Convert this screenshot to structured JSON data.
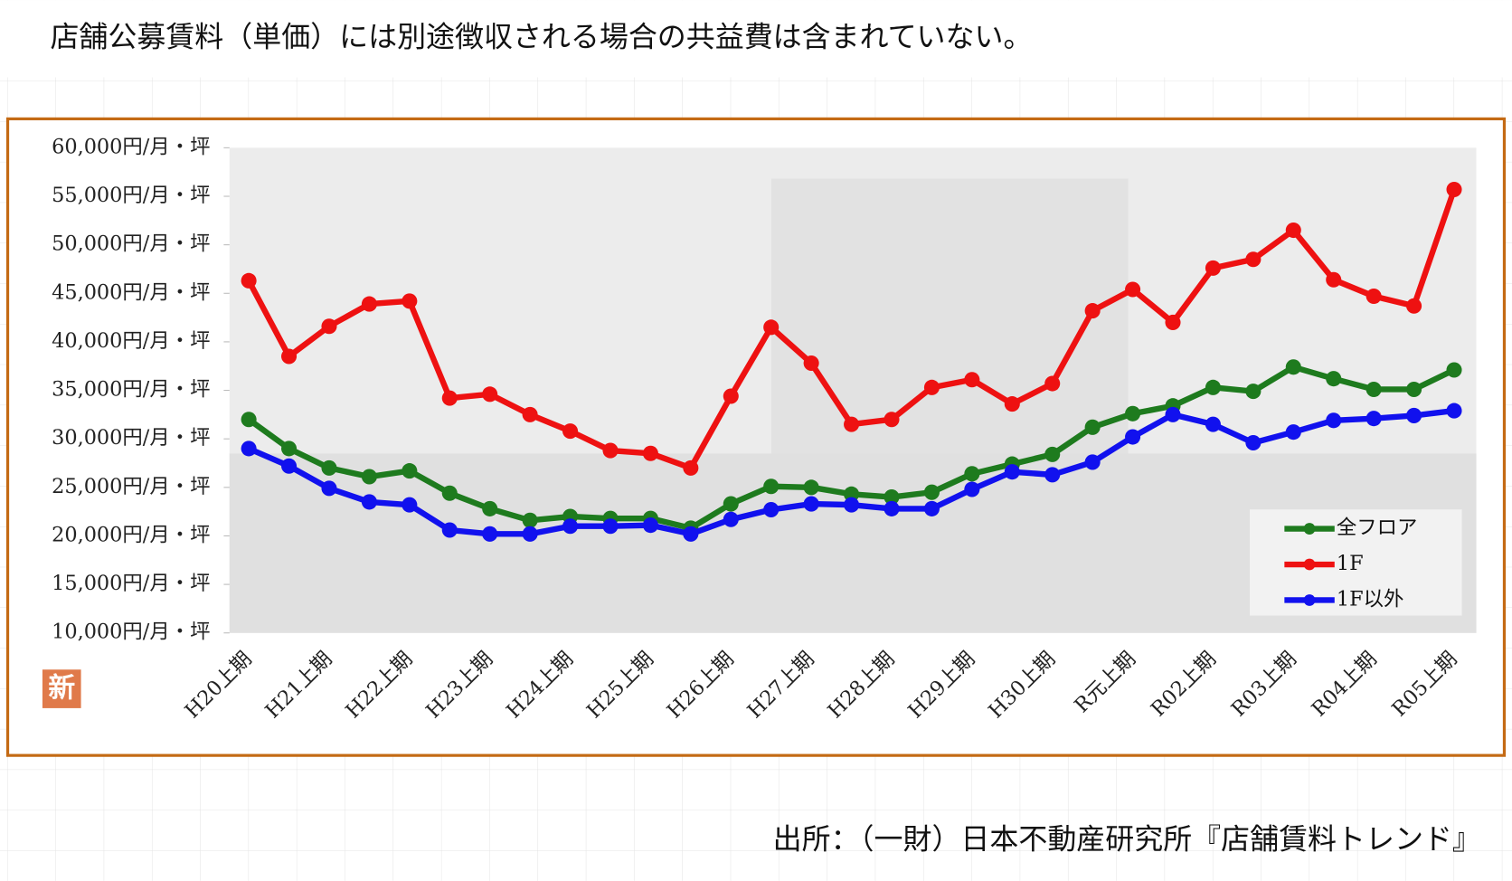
{
  "header": {
    "title": "店舗公募賃料（単価）には別途徴収される場合の共益費は含まれていない。"
  },
  "badge": "新",
  "chart_data": {
    "type": "line",
    "categories": [
      "H20上期",
      null,
      "H21上期",
      null,
      "H22上期",
      null,
      "H23上期",
      null,
      "H24上期",
      null,
      "H25上期",
      null,
      "H26上期",
      null,
      "H27上期",
      null,
      "H28上期",
      null,
      "H29上期",
      null,
      "H30上期",
      null,
      "R元上期",
      null,
      "R02上期",
      null,
      "R03上期",
      null,
      "R04上期",
      null,
      "R05上期"
    ],
    "series": [
      {
        "name": "全フロア",
        "color": "#1e7b1e",
        "values": [
          32000,
          29000,
          27000,
          26100,
          26700,
          24400,
          22800,
          21600,
          22000,
          21800,
          21800,
          20800,
          23300,
          25100,
          25000,
          24300,
          24000,
          24500,
          26400,
          27400,
          28400,
          31200,
          32600,
          33400,
          35300,
          34900,
          37400,
          36200,
          35100,
          35100,
          37100
        ]
      },
      {
        "name": "1F",
        "color": "#ee1111",
        "values": [
          46300,
          38500,
          41600,
          43900,
          44200,
          34200,
          34600,
          32500,
          30800,
          28800,
          28500,
          27000,
          34400,
          41500,
          37800,
          31500,
          32000,
          35300,
          36100,
          33600,
          35700,
          43200,
          45400,
          42000,
          47600,
          48500,
          51500,
          46400,
          44700,
          43700,
          55700
        ]
      },
      {
        "name": "1F以外",
        "color": "#1111ee",
        "values": [
          29000,
          27200,
          24900,
          23500,
          23200,
          20600,
          20200,
          20200,
          21000,
          21000,
          21100,
          20200,
          21700,
          22700,
          23300,
          23200,
          22800,
          22800,
          24800,
          26600,
          26300,
          27600,
          30200,
          32500,
          31500,
          29600,
          30700,
          31900,
          32100,
          32400,
          32900
        ]
      }
    ],
    "ylim": [
      10000,
      60000
    ],
    "yticks": [
      {
        "value": 10000,
        "label": "10,000円/月・坪"
      },
      {
        "value": 15000,
        "label": "15,000円/月・坪"
      },
      {
        "value": 20000,
        "label": "20,000円/月・坪"
      },
      {
        "value": 25000,
        "label": "25,000円/月・坪"
      },
      {
        "value": 30000,
        "label": "30,000円/月・坪"
      },
      {
        "value": 35000,
        "label": "35,000円/月・坪"
      },
      {
        "value": 40000,
        "label": "40,000円/月・坪"
      },
      {
        "value": 45000,
        "label": "45,000円/月・坪"
      },
      {
        "value": 50000,
        "label": "50,000円/月・坪"
      },
      {
        "value": 55000,
        "label": "55,000円/月・坪"
      },
      {
        "value": 60000,
        "label": "60,000円/月・坪"
      }
    ],
    "legend": "lower right"
  },
  "footer": {
    "source": "出所：（一財）日本不動産研究所『店舗賃料トレンド』"
  }
}
